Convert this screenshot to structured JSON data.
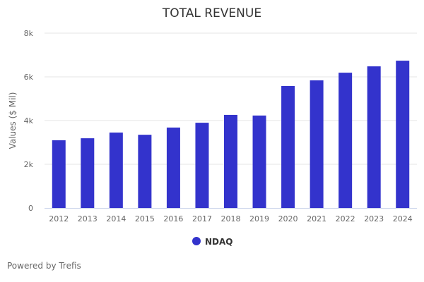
{
  "chart_data": {
    "type": "bar",
    "title": "TOTAL REVENUE",
    "xlabel": "",
    "ylabel": "Values ($ Mil)",
    "ylim": [
      0,
      8000
    ],
    "yticks": [
      0,
      2000,
      4000,
      6000,
      8000
    ],
    "ytick_labels": [
      "0",
      "2k",
      "4k",
      "6k",
      "8k"
    ],
    "grid": true,
    "legend_position": "bottom-center",
    "categories": [
      "2012",
      "2013",
      "2014",
      "2015",
      "2016",
      "2017",
      "2018",
      "2019",
      "2020",
      "2021",
      "2022",
      "2023",
      "2024"
    ],
    "series": [
      {
        "name": "NDAQ",
        "color": "#3333cc",
        "values": [
          3100,
          3190,
          3450,
          3350,
          3680,
          3900,
          4260,
          4230,
          5580,
          5840,
          6190,
          6480,
          6740
        ]
      }
    ]
  },
  "credit": "Powered by Trefis"
}
